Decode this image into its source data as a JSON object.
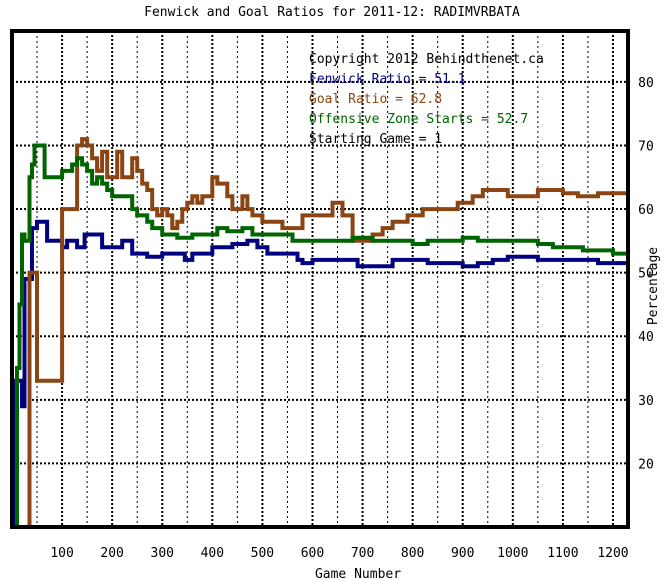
{
  "chart_data": {
    "type": "line",
    "title": "Fenwick and Goal Ratios for 2011-12: RADIMVRBATA",
    "xlabel": "Game Number",
    "ylabel": "Percentage",
    "xlim": [
      0,
      1230
    ],
    "ylim": [
      10,
      88
    ],
    "x_ticks": [
      100,
      200,
      300,
      400,
      500,
      600,
      700,
      800,
      900,
      1000,
      1100,
      1200
    ],
    "y_ticks": [
      20,
      30,
      40,
      50,
      60,
      70,
      80
    ],
    "grid": true,
    "grid_x_step": 50,
    "grid_y_step": 10,
    "legend_placement": "top-right",
    "annotations": [
      {
        "text": "Copyright 2012 Behindthenet.ca",
        "color": "#000000"
      },
      {
        "text": "Fenwick Ratio = 51.1",
        "color": "#000080"
      },
      {
        "text": "Goal Ratio = 62.8",
        "color": "#8b4513"
      },
      {
        "text": "Offensive Zone Starts = 52.7",
        "color": "#006400"
      },
      {
        "text": "Starting Game = 1",
        "color": "#000000"
      }
    ],
    "series": [
      {
        "name": "Fenwick Ratio",
        "color": "#000080",
        "points": [
          [
            1,
            10
          ],
          [
            5,
            33
          ],
          [
            10,
            33
          ],
          [
            20,
            29
          ],
          [
            25,
            49
          ],
          [
            40,
            57
          ],
          [
            50,
            58
          ],
          [
            60,
            58
          ],
          [
            70,
            55
          ],
          [
            90,
            55
          ],
          [
            100,
            54
          ],
          [
            110,
            55
          ],
          [
            130,
            54
          ],
          [
            145,
            56
          ],
          [
            165,
            56
          ],
          [
            180,
            54
          ],
          [
            200,
            54
          ],
          [
            220,
            55
          ],
          [
            240,
            53
          ],
          [
            270,
            52.5
          ],
          [
            300,
            53
          ],
          [
            330,
            53
          ],
          [
            345,
            52
          ],
          [
            360,
            53
          ],
          [
            385,
            53
          ],
          [
            400,
            54
          ],
          [
            420,
            54
          ],
          [
            440,
            54.5
          ],
          [
            470,
            55
          ],
          [
            490,
            54
          ],
          [
            510,
            53
          ],
          [
            540,
            53
          ],
          [
            570,
            52
          ],
          [
            580,
            51.5
          ],
          [
            600,
            52
          ],
          [
            620,
            52
          ],
          [
            660,
            52
          ],
          [
            690,
            51
          ],
          [
            750,
            51
          ],
          [
            760,
            52
          ],
          [
            800,
            52
          ],
          [
            830,
            51.5
          ],
          [
            850,
            51.5
          ],
          [
            900,
            51
          ],
          [
            930,
            51.5
          ],
          [
            960,
            52
          ],
          [
            990,
            52.5
          ],
          [
            1000,
            52.5
          ],
          [
            1020,
            52.5
          ],
          [
            1050,
            52
          ],
          [
            1080,
            52
          ],
          [
            1110,
            52
          ],
          [
            1140,
            52
          ],
          [
            1170,
            51.5
          ],
          [
            1200,
            51.5
          ],
          [
            1230,
            51.1
          ]
        ]
      },
      {
        "name": "Goal Ratio",
        "color": "#8b4513",
        "points": [
          [
            25,
            10
          ],
          [
            35,
            50
          ],
          [
            40,
            50
          ],
          [
            50,
            33
          ],
          [
            60,
            33
          ],
          [
            95,
            33
          ],
          [
            100,
            60
          ],
          [
            120,
            60
          ],
          [
            130,
            70
          ],
          [
            140,
            71
          ],
          [
            150,
            70
          ],
          [
            160,
            68
          ],
          [
            170,
            66
          ],
          [
            180,
            69
          ],
          [
            190,
            65
          ],
          [
            210,
            69
          ],
          [
            220,
            65
          ],
          [
            230,
            65
          ],
          [
            240,
            68
          ],
          [
            250,
            66
          ],
          [
            260,
            64
          ],
          [
            270,
            63
          ],
          [
            280,
            60
          ],
          [
            290,
            59
          ],
          [
            300,
            60
          ],
          [
            310,
            59
          ],
          [
            320,
            57
          ],
          [
            330,
            58
          ],
          [
            340,
            60
          ],
          [
            350,
            61
          ],
          [
            360,
            62
          ],
          [
            370,
            61
          ],
          [
            380,
            62
          ],
          [
            390,
            62
          ],
          [
            400,
            65
          ],
          [
            410,
            64
          ],
          [
            420,
            64
          ],
          [
            430,
            62
          ],
          [
            440,
            60
          ],
          [
            460,
            62
          ],
          [
            470,
            60
          ],
          [
            480,
            59
          ],
          [
            500,
            58
          ],
          [
            520,
            58
          ],
          [
            540,
            57
          ],
          [
            560,
            57
          ],
          [
            580,
            59
          ],
          [
            600,
            59
          ],
          [
            620,
            59
          ],
          [
            640,
            61
          ],
          [
            660,
            59
          ],
          [
            680,
            55
          ],
          [
            700,
            55
          ],
          [
            720,
            56
          ],
          [
            740,
            57
          ],
          [
            760,
            58
          ],
          [
            790,
            59
          ],
          [
            820,
            60
          ],
          [
            860,
            60
          ],
          [
            890,
            61
          ],
          [
            920,
            62
          ],
          [
            940,
            63
          ],
          [
            960,
            63
          ],
          [
            990,
            62
          ],
          [
            1020,
            62
          ],
          [
            1050,
            63
          ],
          [
            1080,
            63
          ],
          [
            1100,
            62.5
          ],
          [
            1130,
            62
          ],
          [
            1170,
            62.5
          ],
          [
            1200,
            62.5
          ],
          [
            1230,
            62.8
          ]
        ]
      },
      {
        "name": "Offensive Zone Starts",
        "color": "#006400",
        "points": [
          [
            1,
            10
          ],
          [
            10,
            35
          ],
          [
            15,
            45
          ],
          [
            20,
            56
          ],
          [
            25,
            55
          ],
          [
            35,
            65
          ],
          [
            40,
            67
          ],
          [
            45,
            70
          ],
          [
            60,
            70
          ],
          [
            65,
            65
          ],
          [
            90,
            65
          ],
          [
            100,
            66
          ],
          [
            110,
            66
          ],
          [
            120,
            67
          ],
          [
            130,
            68
          ],
          [
            140,
            67
          ],
          [
            150,
            66
          ],
          [
            160,
            64
          ],
          [
            170,
            65
          ],
          [
            180,
            64
          ],
          [
            190,
            63
          ],
          [
            200,
            62
          ],
          [
            230,
            62
          ],
          [
            240,
            60
          ],
          [
            250,
            59
          ],
          [
            260,
            59
          ],
          [
            270,
            58
          ],
          [
            280,
            57
          ],
          [
            300,
            56
          ],
          [
            330,
            55.5
          ],
          [
            360,
            56
          ],
          [
            390,
            56
          ],
          [
            410,
            57
          ],
          [
            430,
            56.5
          ],
          [
            460,
            57
          ],
          [
            480,
            56
          ],
          [
            500,
            56
          ],
          [
            520,
            56
          ],
          [
            560,
            55
          ],
          [
            600,
            55
          ],
          [
            640,
            55
          ],
          [
            680,
            55.5
          ],
          [
            720,
            55
          ],
          [
            760,
            55
          ],
          [
            800,
            54.5
          ],
          [
            830,
            55
          ],
          [
            860,
            55
          ],
          [
            900,
            55.5
          ],
          [
            930,
            55
          ],
          [
            960,
            55
          ],
          [
            990,
            55
          ],
          [
            1020,
            55
          ],
          [
            1050,
            54.5
          ],
          [
            1080,
            54
          ],
          [
            1110,
            54
          ],
          [
            1140,
            53.5
          ],
          [
            1170,
            53.5
          ],
          [
            1200,
            53
          ],
          [
            1230,
            52.7
          ]
        ]
      }
    ]
  }
}
